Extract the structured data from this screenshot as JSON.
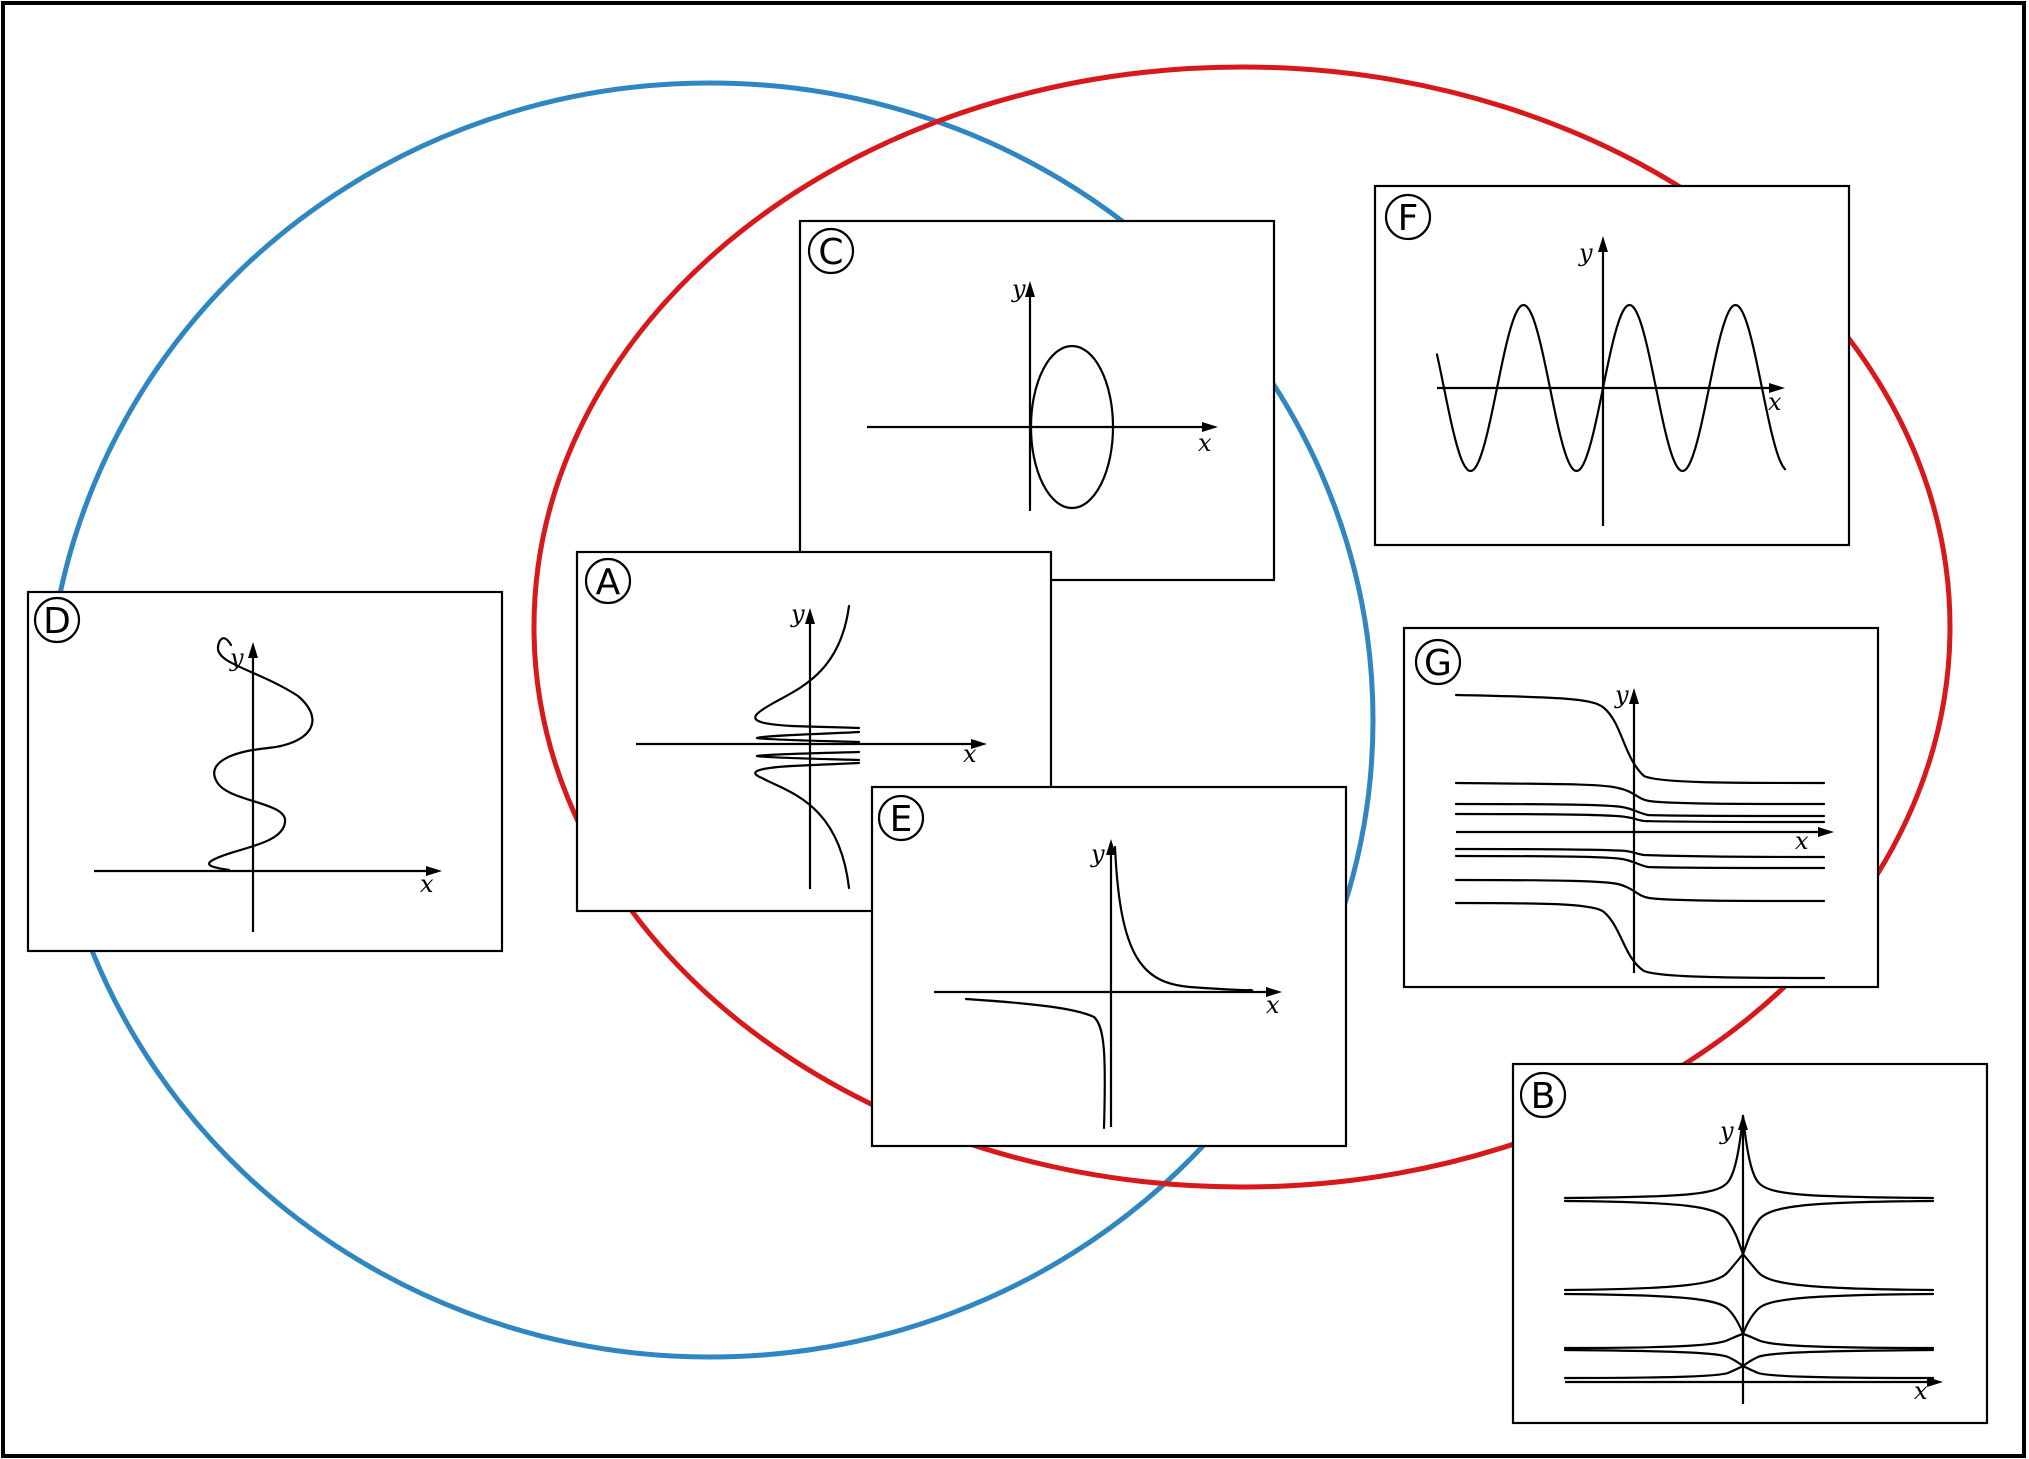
{
  "colors": {
    "circle_left": "#2f86c1",
    "circle_right": "#d7191c",
    "line": "#000000",
    "background": "#ffffff"
  },
  "panels": [
    {
      "label": "A",
      "x_axis_label": "x",
      "y_axis_label": "y"
    },
    {
      "label": "B",
      "x_axis_label": "x",
      "y_axis_label": "y"
    },
    {
      "label": "C",
      "x_axis_label": "x",
      "y_axis_label": "y"
    },
    {
      "label": "D",
      "x_axis_label": "x",
      "y_axis_label": "y"
    },
    {
      "label": "E",
      "x_axis_label": "x",
      "y_axis_label": "y"
    },
    {
      "label": "F",
      "x_axis_label": "x",
      "y_axis_label": "y"
    },
    {
      "label": "G",
      "x_axis_label": "x",
      "y_axis_label": "y"
    }
  ]
}
